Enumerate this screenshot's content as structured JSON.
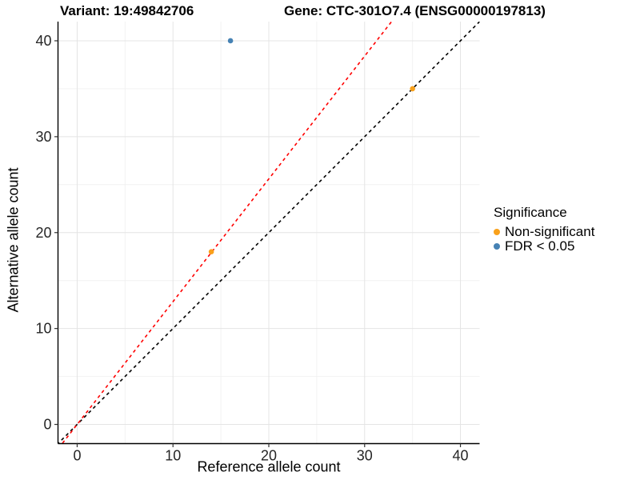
{
  "chart_data": {
    "type": "scatter",
    "title_left": "Variant: 19:49842706",
    "title_right": "Gene: CTC-301O7.4 (ENSG00000197813)",
    "xlabel": "Reference allele count",
    "ylabel": "Alternative allele count",
    "xlim": [
      -2,
      42
    ],
    "ylim": [
      -2,
      42
    ],
    "xticks": [
      0,
      10,
      20,
      30,
      40
    ],
    "yticks": [
      0,
      10,
      20,
      30,
      40
    ],
    "minor_xticks": [
      5,
      15,
      25,
      35
    ],
    "minor_yticks": [
      5,
      15,
      25,
      35
    ],
    "grid": true,
    "legend": {
      "title": "Significance",
      "position": "right",
      "items": [
        {
          "label": "Non-significant",
          "color": "#F9A11B"
        },
        {
          "label": "FDR < 0.05",
          "color": "#4682B4"
        }
      ]
    },
    "series": [
      {
        "name": "Non-significant",
        "color": "#F9A11B",
        "points": [
          [
            14,
            18
          ],
          [
            35,
            35
          ]
        ]
      },
      {
        "name": "FDR < 0.05",
        "color": "#4682B4",
        "points": [
          [
            16,
            40
          ]
        ]
      }
    ],
    "lines": [
      {
        "name": "identity-line",
        "color": "#000000",
        "slope": 1,
        "intercept": 0,
        "dashed": true
      },
      {
        "name": "expected-ratio-line",
        "color": "#FF0000",
        "slope": 1.28,
        "intercept": 0,
        "dashed": true
      }
    ],
    "colors": {
      "grid_major": "#E4E4E4",
      "grid_minor": "#F2F2F2",
      "axis_line": "#000000",
      "tick_mark": "#333333",
      "tick_text": "#262626"
    }
  }
}
